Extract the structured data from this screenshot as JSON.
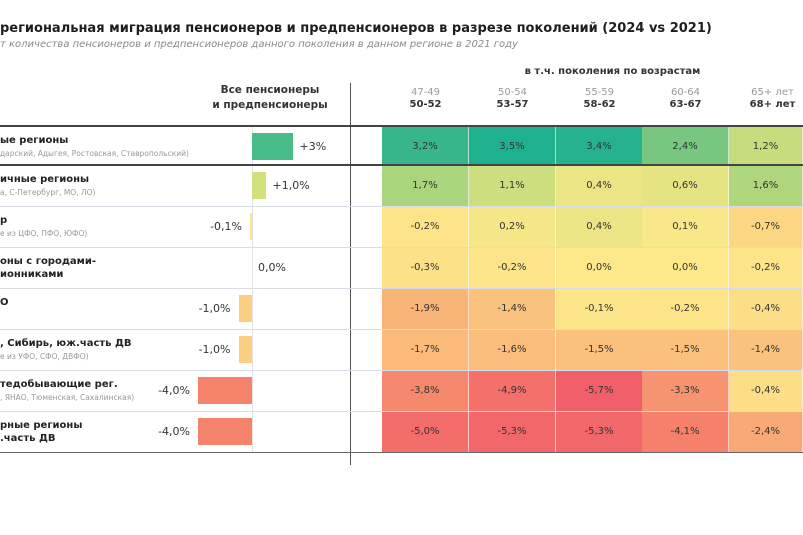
{
  "title": "региональная миграция пенсионеров и предпенсионеров в разрезе поколений (2024 vs 2021)",
  "subtitle": "т количества пенсионеров и предпенсионеров данного поколения в данном регионе в 2021 году",
  "chart_data": {
    "type": "heatmap",
    "all_header": [
      "Все пенсионеры",
      "и предпенсионеры"
    ],
    "generations_header": "в т.ч. поколения по возрастам",
    "columns": [
      {
        "age_2021": "47-49",
        "age_2024": "50-52"
      },
      {
        "age_2021": "50-54",
        "age_2024": "53-57"
      },
      {
        "age_2021": "55-59",
        "age_2024": "58-62"
      },
      {
        "age_2021": "60-64",
        "age_2024": "63-67"
      },
      {
        "age_2021": "65+ лет",
        "age_2024": "68+ лет"
      }
    ],
    "rows": [
      {
        "label": "ые регионы",
        "sub": "дарский, Адыгея, Ростовская, Ставропольский)",
        "total": 3,
        "total_label": "+3%",
        "values": [
          3.2,
          3.5,
          3.4,
          2.4,
          1.2
        ],
        "value_labels": [
          "3,2%",
          "3,5%",
          "3,4%",
          "2,4%",
          "1,2%"
        ]
      },
      {
        "label": "ичные регионы",
        "sub": "а, С-Петербург, МО, ЛО)",
        "total": 1.0,
        "total_label": "+1,0%",
        "values": [
          1.7,
          1.1,
          0.4,
          0.6,
          1.6
        ],
        "value_labels": [
          "1,7%",
          "1,1%",
          "0,4%",
          "0,6%",
          "1,6%"
        ]
      },
      {
        "label": "р",
        "sub": "е из ЦФО, ПФО, ЮФО)",
        "total": -0.1,
        "total_label": "-0,1%",
        "values": [
          -0.2,
          0.2,
          0.4,
          0.1,
          -0.7
        ],
        "value_labels": [
          "-0,2%",
          "0,2%",
          "0,4%",
          "0,1%",
          "-0,7%"
        ]
      },
      {
        "label": "оны с городами-\nионниками",
        "sub": "",
        "total": 0.0,
        "total_label": "0,0%",
        "values": [
          -0.3,
          -0.2,
          0.0,
          0.0,
          -0.2
        ],
        "value_labels": [
          "-0,3%",
          "-0,2%",
          "0,0%",
          "0,0%",
          "-0,2%"
        ]
      },
      {
        "label": "О",
        "sub": "",
        "total": -1.0,
        "total_label": "-1,0%",
        "values": [
          -1.9,
          -1.4,
          -0.1,
          -0.2,
          -0.4
        ],
        "value_labels": [
          "-1,9%",
          "-1,4%",
          "-0,1%",
          "-0,2%",
          "-0,4%"
        ]
      },
      {
        "label": ", Сибирь, юж.часть ДВ",
        "sub": "е из УФО, СФО, ДВФО)",
        "total": -1.0,
        "total_label": "-1,0%",
        "values": [
          -1.7,
          -1.6,
          -1.5,
          -1.5,
          -1.4
        ],
        "value_labels": [
          "-1,7%",
          "-1,6%",
          "-1,5%",
          "-1,5%",
          "-1,4%"
        ]
      },
      {
        "label": "тедобывающие рег.",
        "sub": ", ЯНАО, Тюменская, Сахалинская)",
        "total": -4.0,
        "total_label": "-4,0%",
        "values": [
          -3.8,
          -4.9,
          -5.7,
          -3.3,
          -0.4
        ],
        "value_labels": [
          "-3,8%",
          "-4,9%",
          "-5,7%",
          "-3,3%",
          "-0,4%"
        ]
      },
      {
        "label": "рные регионы\n.часть ДВ",
        "sub": "",
        "total": -4.0,
        "total_label": "-4,0%",
        "values": [
          -5.0,
          -5.3,
          -5.3,
          -4.1,
          -2.4
        ],
        "value_labels": [
          "-5,0%",
          "-5,3%",
          "-5,3%",
          "-4,1%",
          "-2,4%"
        ]
      }
    ],
    "color_scale": [
      {
        "v": -5.7,
        "c": "#f1606a"
      },
      {
        "v": -4.0,
        "c": "#f5836c"
      },
      {
        "v": -2.0,
        "c": "#f9b277"
      },
      {
        "v": 0.0,
        "c": "#fde98a"
      },
      {
        "v": 1.0,
        "c": "#d3e07e"
      },
      {
        "v": 2.0,
        "c": "#97d07b"
      },
      {
        "v": 3.5,
        "c": "#1fb08f"
      }
    ]
  }
}
